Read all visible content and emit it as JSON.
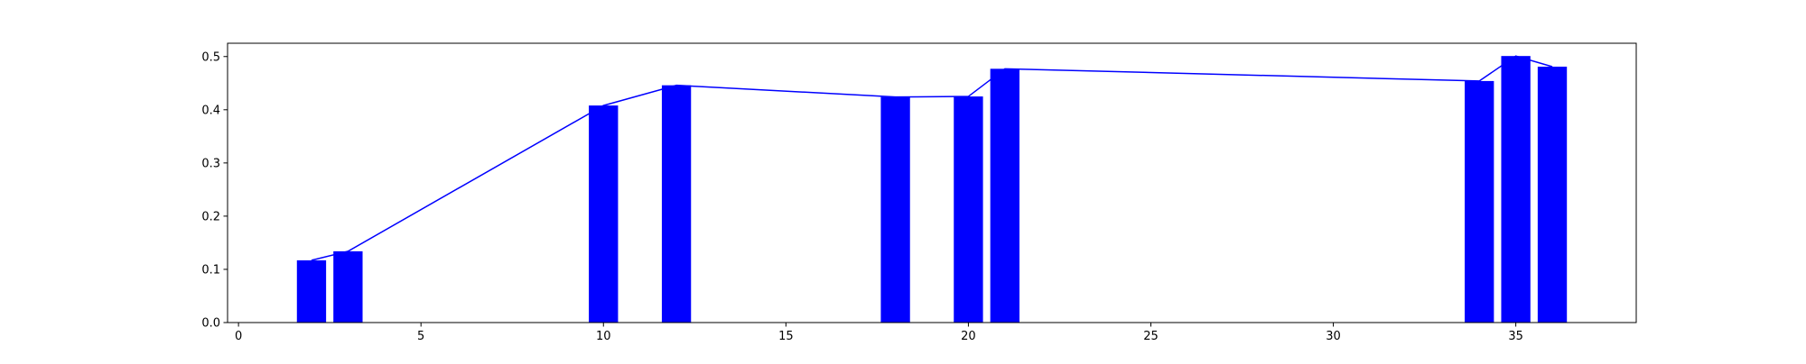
{
  "chart_data": {
    "type": "bar",
    "title": "",
    "xlabel": "",
    "ylabel": "",
    "x": [
      2,
      3,
      10,
      12,
      18,
      20,
      21,
      34,
      35,
      36
    ],
    "values": [
      0.117,
      0.134,
      0.408,
      0.446,
      0.424,
      0.425,
      0.477,
      0.454,
      0.501,
      0.481
    ],
    "bar_width": 0.8,
    "bar_color": "#0000ff",
    "line_overlay": true,
    "line_color": "#0000ff",
    "xlim": [
      -0.3,
      38.3
    ],
    "ylim": [
      0.0,
      0.525
    ],
    "xticks": [
      0,
      5,
      10,
      15,
      20,
      25,
      30,
      35
    ],
    "xtick_labels": [
      "0",
      "5",
      "10",
      "15",
      "20",
      "25",
      "30",
      "35"
    ],
    "yticks": [
      0.0,
      0.1,
      0.2,
      0.3,
      0.4,
      0.5
    ],
    "ytick_labels": [
      "0.0",
      "0.1",
      "0.2",
      "0.3",
      "0.4",
      "0.5"
    ],
    "grid": false,
    "legend": "none"
  }
}
